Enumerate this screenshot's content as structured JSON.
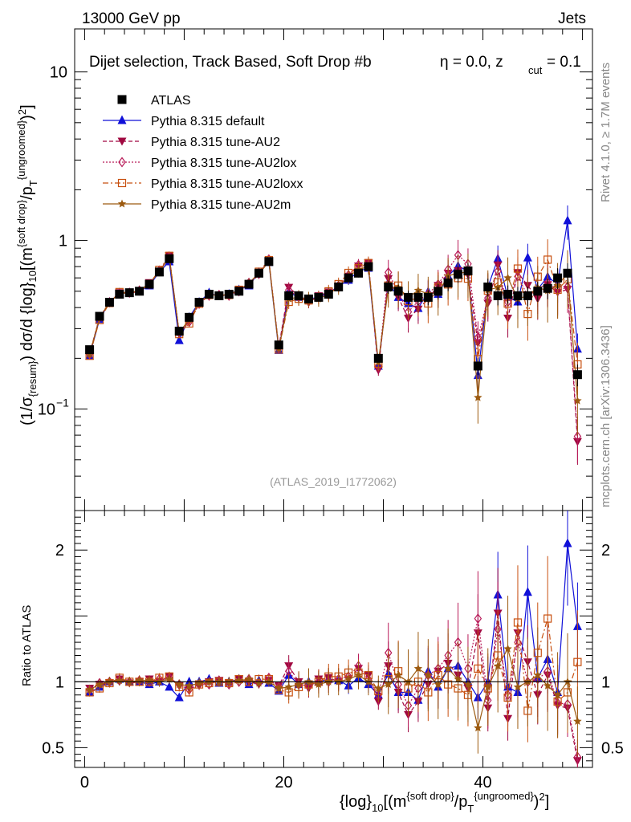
{
  "header": {
    "left": "13000 GeV pp",
    "right": "Jets"
  },
  "side_labels": {
    "rivet": "Rivet 4.1.0, ≥ 1.7M events",
    "mcplots": "mcplots.cern.ch [arXiv:1306.3436]"
  },
  "chart_data": {
    "type": "line",
    "title": "Dijet selection, Track Based, Soft Drop #b",
    "title_eta": "η = 0.0, z",
    "title_cut_sub": "cut",
    "title_tail": " = 0.1",
    "watermark": "(ATLAS_2019_I1772062)",
    "ylabel_main": "(1/σ{resum}) dσ/d {log}10[(m^{soft drop}/pT^{ungroomed})^2]",
    "ylabel_ratio": "Ratio to ATLAS",
    "xlabel": "{log}10[(m^{soft drop}/pT^{ungroomed})^2]",
    "xlim": [
      -1,
      51
    ],
    "ylim_main": [
      0.025,
      18
    ],
    "ylim_ratio": [
      0.35,
      2.3
    ],
    "yscale_main": "log",
    "x_ticks": [
      0,
      20,
      40
    ],
    "y_ticks_main": [
      "10^-1",
      "1",
      "10"
    ],
    "y_ticks_ratio": [
      0.5,
      1,
      2
    ],
    "legend_position": "top-left",
    "x": [
      0.5,
      1.5,
      2.5,
      3.5,
      4.5,
      5.5,
      6.5,
      7.5,
      8.5,
      9.5,
      10.5,
      11.5,
      12.5,
      13.5,
      14.5,
      15.5,
      16.5,
      17.5,
      18.5,
      19.5,
      20.5,
      21.5,
      22.5,
      23.5,
      24.5,
      25.5,
      26.5,
      27.5,
      28.5,
      29.5,
      30.5,
      31.5,
      32.5,
      33.5,
      34.5,
      35.5,
      36.5,
      37.5,
      38.5,
      39.5,
      40.5,
      41.5,
      42.5,
      43.5,
      44.5,
      45.5,
      46.5,
      47.5,
      48.5,
      49.5
    ],
    "series": [
      {
        "name": "ATLAS",
        "style": "data",
        "color": "#000000",
        "values": [
          0.225,
          0.355,
          0.43,
          0.48,
          0.49,
          0.5,
          0.55,
          0.65,
          0.78,
          0.29,
          0.35,
          0.43,
          0.48,
          0.47,
          0.48,
          0.5,
          0.55,
          0.64,
          0.75,
          0.24,
          0.47,
          0.47,
          0.45,
          0.46,
          0.48,
          0.53,
          0.6,
          0.64,
          0.7,
          0.2,
          0.53,
          0.5,
          0.46,
          0.46,
          0.46,
          0.5,
          0.56,
          0.63,
          0.66,
          0.18,
          0.53,
          0.47,
          0.48,
          0.47,
          0.47,
          0.5,
          0.52,
          0.6,
          0.64,
          0.16
        ]
      },
      {
        "name": "Pythia 8.315 default",
        "style": "solid",
        "color": "#1010d8",
        "marker": "triangle-up",
        "ratio": [
          0.92,
          0.96,
          1.0,
          1.02,
          1.0,
          1.0,
          0.98,
          1.0,
          0.96,
          0.88,
          1.0,
          1.0,
          1.02,
          0.99,
          1.0,
          1.02,
          0.98,
          1.01,
          0.99,
          0.93,
          1.05,
          0.98,
          1.0,
          1.0,
          1.02,
          1.01,
          0.97,
          1.03,
          0.98,
          0.9,
          1.06,
          0.92,
          0.92,
          0.86,
          1.08,
          0.96,
          1.1,
          1.12,
          1.0,
          0.88,
          1.0,
          1.66,
          0.96,
          0.92,
          1.68,
          1.03,
          1.17,
          0.92,
          2.05,
          1.42
        ]
      },
      {
        "name": "Pythia 8.315 tune-AU2",
        "style": "dashed",
        "color": "#a00840",
        "marker": "triangle-down",
        "ratio": [
          0.95,
          0.98,
          0.99,
          1.02,
          0.99,
          1.0,
          1.02,
          1.0,
          1.04,
          0.97,
          0.95,
          0.97,
          1.0,
          1.01,
          0.99,
          1.02,
          1.0,
          0.98,
          1.01,
          0.97,
          1.12,
          1.0,
          0.95,
          1.02,
          1.03,
          1.0,
          1.02,
          1.1,
          1.05,
          0.85,
          1.12,
          0.92,
          0.75,
          0.85,
          0.98,
          1.08,
          1.14,
          1.05,
          0.95,
          1.37,
          0.8,
          1.52,
          0.72,
          1.37,
          1.15,
          0.9,
          1.05,
          0.82,
          0.8,
          0.4
        ]
      },
      {
        "name": "Pythia 8.315 tune-AU2lox",
        "style": "dotted",
        "color": "#b81a58",
        "marker": "diamond-open",
        "ratio": [
          0.94,
          0.99,
          1.0,
          1.01,
          1.0,
          1.01,
          1.0,
          1.02,
          1.03,
          0.98,
          0.94,
          0.98,
          0.98,
          1.01,
          0.98,
          1.0,
          1.02,
          0.99,
          1.03,
          0.96,
          1.08,
          0.98,
          0.97,
          1.0,
          1.0,
          1.02,
          1.04,
          1.12,
          1.02,
          0.9,
          1.22,
          0.98,
          0.82,
          0.95,
          1.05,
          1.1,
          1.2,
          1.3,
          1.1,
          1.48,
          0.86,
          1.4,
          0.9,
          1.3,
          1.0,
          1.02,
          1.08,
          0.84,
          0.83,
          0.43
        ]
      },
      {
        "name": "Pythia 8.315 tune-AU2loxx",
        "style": "dashdot",
        "color": "#c85010",
        "marker": "square-open",
        "ratio": [
          0.92,
          0.95,
          0.99,
          1.03,
          1.0,
          1.0,
          1.0,
          1.03,
          1.04,
          0.96,
          0.92,
          0.98,
          0.99,
          1.0,
          0.99,
          1.02,
          1.0,
          1.02,
          1.02,
          0.94,
          0.92,
          0.96,
          0.98,
          1.0,
          1.04,
          1.04,
          1.07,
          1.07,
          1.05,
          0.93,
          1.02,
          1.08,
          0.95,
          1.0,
          0.92,
          1.05,
          0.98,
          0.95,
          0.9,
          1.1,
          0.95,
          1.2,
          0.88,
          1.45,
          0.78,
          1.22,
          1.48,
          0.85,
          0.92,
          1.15
        ]
      },
      {
        "name": "Pythia 8.315 tune-AU2m",
        "style": "solid",
        "color": "#9c5a10",
        "marker": "star",
        "ratio": [
          0.94,
          0.98,
          1.0,
          1.01,
          1.0,
          1.01,
          1.01,
          1.0,
          1.02,
          0.98,
          0.97,
          0.99,
          1.0,
          1.0,
          1.0,
          1.01,
          1.02,
          0.99,
          1.0,
          0.95,
          0.96,
          0.98,
          1.0,
          0.98,
          1.0,
          1.0,
          1.02,
          1.05,
          1.0,
          0.95,
          0.98,
          1.05,
          1.0,
          1.1,
          1.05,
          0.98,
          1.1,
          1.02,
          0.98,
          0.65,
          0.96,
          1.12,
          1.25,
          0.96,
          1.0,
          1.05,
          0.97,
          0.9,
          1.0,
          0.7
        ]
      }
    ]
  }
}
